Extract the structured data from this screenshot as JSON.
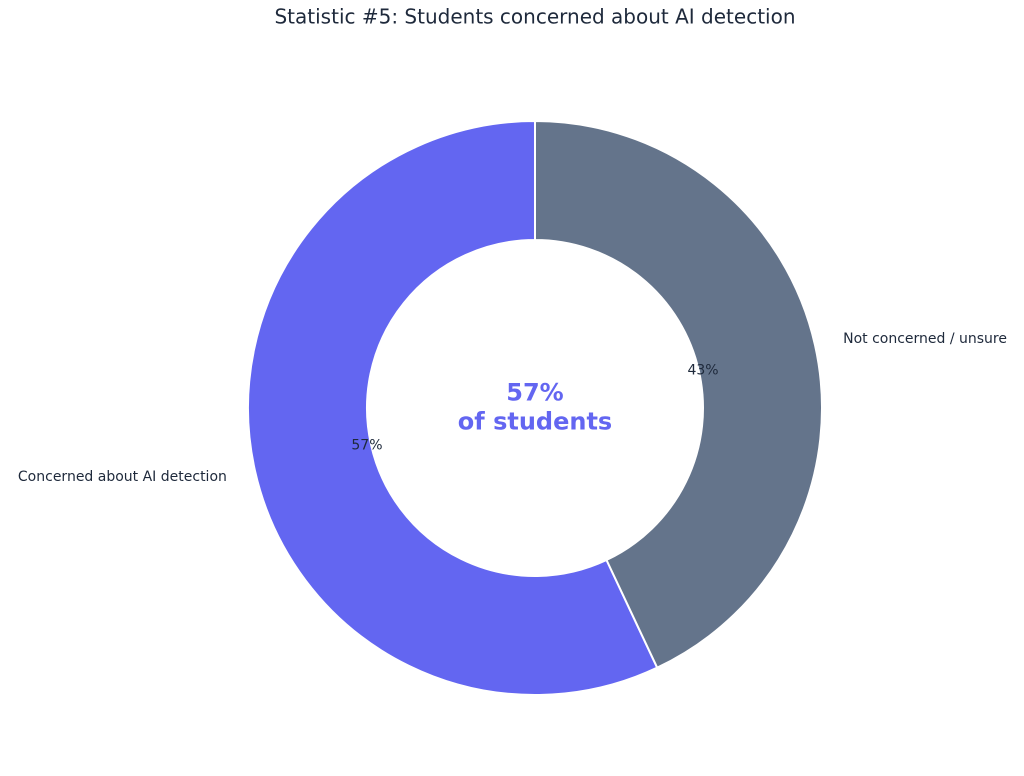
{
  "chart_data": {
    "type": "donut",
    "title": "Statistic #5: Students concerned about AI detection",
    "categories": [
      "Concerned about AI detection",
      "Not concerned / unsure"
    ],
    "values": [
      57,
      43
    ],
    "value_labels": [
      "57%",
      "43%"
    ],
    "colors": [
      "#6366f1",
      "#64748b"
    ],
    "center_text": [
      "57%",
      "of students"
    ],
    "center_color": "#6366f1"
  }
}
